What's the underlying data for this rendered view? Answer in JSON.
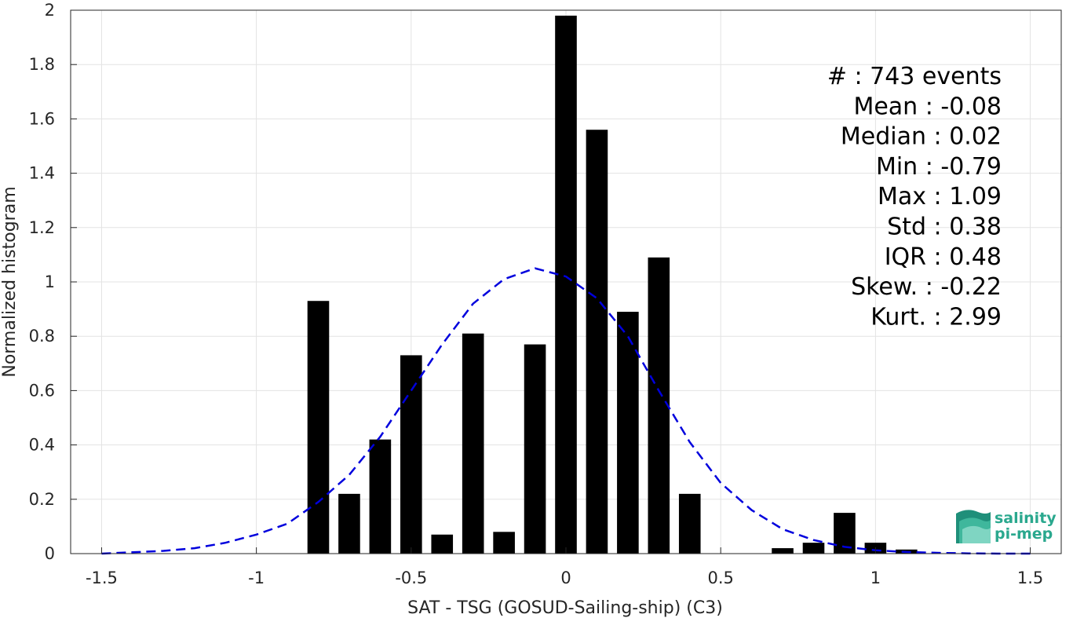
{
  "chart_data": {
    "type": "bar",
    "xlabel": "SAT - TSG (GOSUD-Sailing-ship) (C3)",
    "ylabel": "Normalized histogram",
    "xlim": [
      -1.6,
      1.6
    ],
    "ylim": [
      0,
      2
    ],
    "xticks": [
      "-1.5",
      "-1",
      "-0.5",
      "0",
      "0.5",
      "1",
      "1.5"
    ],
    "yticks": [
      "0",
      "0.2",
      "0.4",
      "0.6",
      "0.8",
      "1",
      "1.2",
      "1.4",
      "1.6",
      "1.8",
      "2"
    ],
    "grid": true,
    "bin_width": 0.1,
    "bars": {
      "x": [
        -0.8,
        -0.7,
        -0.6,
        -0.5,
        -0.4,
        -0.3,
        -0.2,
        -0.1,
        0.0,
        0.1,
        0.2,
        0.3,
        0.4,
        0.7,
        0.8,
        0.9,
        1.0,
        1.1
      ],
      "values": [
        0.93,
        0.22,
        0.42,
        0.73,
        0.07,
        0.81,
        0.08,
        0.77,
        1.98,
        1.56,
        0.89,
        1.09,
        0.22,
        0.02,
        0.04,
        0.15,
        0.04,
        0.015
      ],
      "color": "#000000"
    },
    "fit_curve": {
      "style": "dashed",
      "color": "#0000dd",
      "x": [
        -1.5,
        -1.4,
        -1.3,
        -1.2,
        -1.1,
        -1.0,
        -0.9,
        -0.8,
        -0.7,
        -0.6,
        -0.5,
        -0.4,
        -0.3,
        -0.2,
        -0.1,
        0.0,
        0.1,
        0.2,
        0.3,
        0.4,
        0.5,
        0.6,
        0.7,
        0.8,
        0.9,
        1.0,
        1.1,
        1.2,
        1.3,
        1.4,
        1.5
      ],
      "y": [
        0.0,
        0.005,
        0.01,
        0.02,
        0.04,
        0.07,
        0.11,
        0.19,
        0.29,
        0.43,
        0.6,
        0.77,
        0.92,
        1.01,
        1.05,
        1.02,
        0.94,
        0.8,
        0.6,
        0.41,
        0.26,
        0.16,
        0.09,
        0.05,
        0.025,
        0.012,
        0.006,
        0.003,
        0.001,
        0.0,
        0.0
      ]
    },
    "stats": [
      "#  : 743 events",
      "Mean : -0.08",
      "Median : 0.02",
      "Min : -0.79",
      "Max : 1.09",
      "Std : 0.38",
      "IQR : 0.48",
      "Skew. : -0.22",
      "Kurt. : 2.99"
    ]
  },
  "logo": {
    "line1": "salinity",
    "line2": "pi-mep"
  }
}
